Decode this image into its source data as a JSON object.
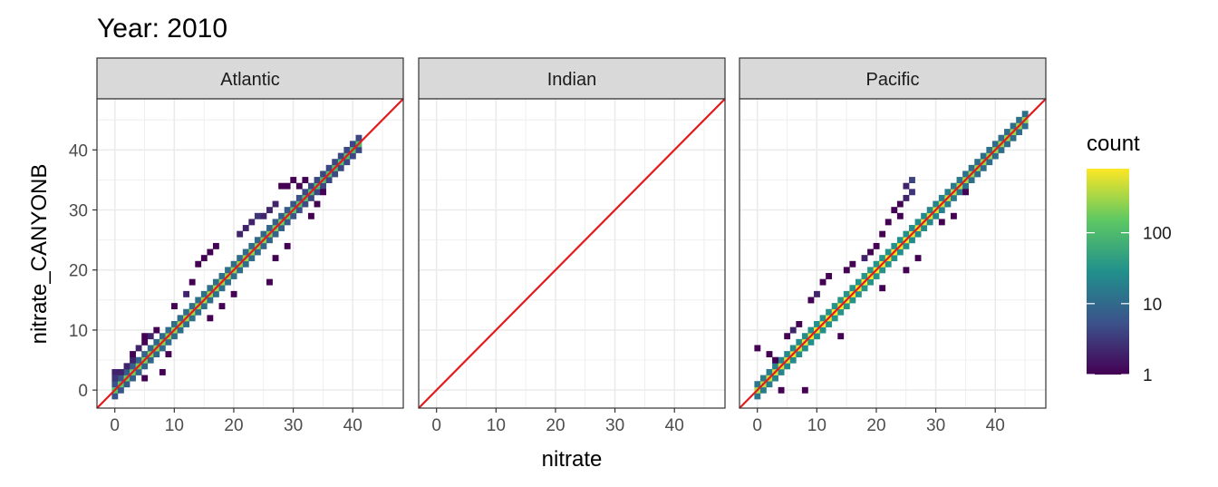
{
  "chart_data": {
    "type": "heatmap",
    "title": "Year: 2010",
    "xlabel": "nitrate",
    "ylabel": "nitrate_CANYONB",
    "xlim": [
      -3,
      48.5
    ],
    "ylim": [
      -3,
      48.5
    ],
    "x_ticks": [
      0,
      10,
      20,
      30,
      40
    ],
    "y_ticks": [
      0,
      10,
      20,
      30,
      40
    ],
    "bin_width": 1,
    "grid": true,
    "legend": {
      "title": "count",
      "position": "right",
      "scale": "log10",
      "range": [
        1,
        800
      ],
      "ticks": [
        1,
        10,
        100
      ],
      "tick_labels": [
        "1",
        "10",
        "100"
      ],
      "colors": [
        "#440154",
        "#3b528b",
        "#21908c",
        "#5dc863",
        "#fde725"
      ]
    },
    "reference_line": {
      "slope": 1,
      "intercept": 0,
      "color": "#e41a1c"
    },
    "facets": [
      {
        "name": "Atlantic",
        "main": {
          "from": 0,
          "to": 41,
          "spread": 1,
          "peak": 300
        },
        "extras": [
          {
            "x": 0,
            "y": 3,
            "count": 2
          },
          {
            "x": 0,
            "y": 2,
            "count": 3
          },
          {
            "x": 1,
            "y": 3,
            "count": 2
          },
          {
            "x": 2,
            "y": 4,
            "count": 2
          },
          {
            "x": 3,
            "y": 5,
            "count": 2
          },
          {
            "x": 3,
            "y": 6,
            "count": 1
          },
          {
            "x": 4,
            "y": 7,
            "count": 2
          },
          {
            "x": 5,
            "y": 8,
            "count": 1
          },
          {
            "x": 5,
            "y": 9,
            "count": 1
          },
          {
            "x": 6,
            "y": 9,
            "count": 2
          },
          {
            "x": 7,
            "y": 10,
            "count": 1
          },
          {
            "x": 5,
            "y": 2,
            "count": 1
          },
          {
            "x": 8,
            "y": 3,
            "count": 1
          },
          {
            "x": 9,
            "y": 6,
            "count": 1
          },
          {
            "x": 10,
            "y": 14,
            "count": 1
          },
          {
            "x": 12,
            "y": 16,
            "count": 2
          },
          {
            "x": 13,
            "y": 18,
            "count": 1
          },
          {
            "x": 14,
            "y": 21,
            "count": 1
          },
          {
            "x": 15,
            "y": 22,
            "count": 1
          },
          {
            "x": 16,
            "y": 23,
            "count": 1
          },
          {
            "x": 17,
            "y": 24,
            "count": 1
          },
          {
            "x": 16,
            "y": 12,
            "count": 1
          },
          {
            "x": 18,
            "y": 14,
            "count": 1
          },
          {
            "x": 20,
            "y": 16,
            "count": 1
          },
          {
            "x": 21,
            "y": 26,
            "count": 2
          },
          {
            "x": 22,
            "y": 27,
            "count": 2
          },
          {
            "x": 23,
            "y": 28,
            "count": 2
          },
          {
            "x": 24,
            "y": 29,
            "count": 3
          },
          {
            "x": 25,
            "y": 29,
            "count": 2
          },
          {
            "x": 26,
            "y": 30,
            "count": 2
          },
          {
            "x": 27,
            "y": 31,
            "count": 2
          },
          {
            "x": 28,
            "y": 34,
            "count": 1
          },
          {
            "x": 29,
            "y": 34,
            "count": 1
          },
          {
            "x": 27,
            "y": 22,
            "count": 1
          },
          {
            "x": 29,
            "y": 24,
            "count": 1
          },
          {
            "x": 26,
            "y": 18,
            "count": 1
          },
          {
            "x": 30,
            "y": 35,
            "count": 1
          },
          {
            "x": 31,
            "y": 34,
            "count": 1
          },
          {
            "x": 32,
            "y": 35,
            "count": 1
          },
          {
            "x": 34,
            "y": 31,
            "count": 1
          },
          {
            "x": 33,
            "y": 29,
            "count": 1
          },
          {
            "x": 35,
            "y": 33,
            "count": 1
          }
        ]
      },
      {
        "name": "Indian",
        "main": null,
        "extras": []
      },
      {
        "name": "Pacific",
        "main": {
          "from": 0,
          "to": 45,
          "spread": 1,
          "peak": 800
        },
        "extras": [
          {
            "x": 0,
            "y": 7,
            "count": 1
          },
          {
            "x": 2,
            "y": 6,
            "count": 1
          },
          {
            "x": 3,
            "y": 5,
            "count": 1
          },
          {
            "x": 5,
            "y": 9,
            "count": 1
          },
          {
            "x": 6,
            "y": 10,
            "count": 2
          },
          {
            "x": 7,
            "y": 11,
            "count": 1
          },
          {
            "x": 4,
            "y": 0,
            "count": 1
          },
          {
            "x": 8,
            "y": 0,
            "count": 1
          },
          {
            "x": 9,
            "y": 15,
            "count": 1
          },
          {
            "x": 10,
            "y": 16,
            "count": 2
          },
          {
            "x": 11,
            "y": 18,
            "count": 1
          },
          {
            "x": 12,
            "y": 19,
            "count": 1
          },
          {
            "x": 15,
            "y": 20,
            "count": 1
          },
          {
            "x": 16,
            "y": 21,
            "count": 1
          },
          {
            "x": 18,
            "y": 22,
            "count": 2
          },
          {
            "x": 19,
            "y": 23,
            "count": 1
          },
          {
            "x": 20,
            "y": 24,
            "count": 1
          },
          {
            "x": 21,
            "y": 26,
            "count": 1
          },
          {
            "x": 22,
            "y": 28,
            "count": 1
          },
          {
            "x": 23,
            "y": 30,
            "count": 1
          },
          {
            "x": 24,
            "y": 31,
            "count": 1
          },
          {
            "x": 25,
            "y": 32,
            "count": 2
          },
          {
            "x": 25,
            "y": 34,
            "count": 2
          },
          {
            "x": 26,
            "y": 33,
            "count": 3
          },
          {
            "x": 26,
            "y": 35,
            "count": 4
          },
          {
            "x": 24,
            "y": 29,
            "count": 1
          },
          {
            "x": 27,
            "y": 22,
            "count": 1
          },
          {
            "x": 25,
            "y": 20,
            "count": 1
          },
          {
            "x": 14,
            "y": 9,
            "count": 1
          },
          {
            "x": 21,
            "y": 17,
            "count": 1
          },
          {
            "x": 31,
            "y": 28,
            "count": 1
          },
          {
            "x": 33,
            "y": 29,
            "count": 1
          },
          {
            "x": 35,
            "y": 33,
            "count": 1
          }
        ]
      }
    ]
  }
}
